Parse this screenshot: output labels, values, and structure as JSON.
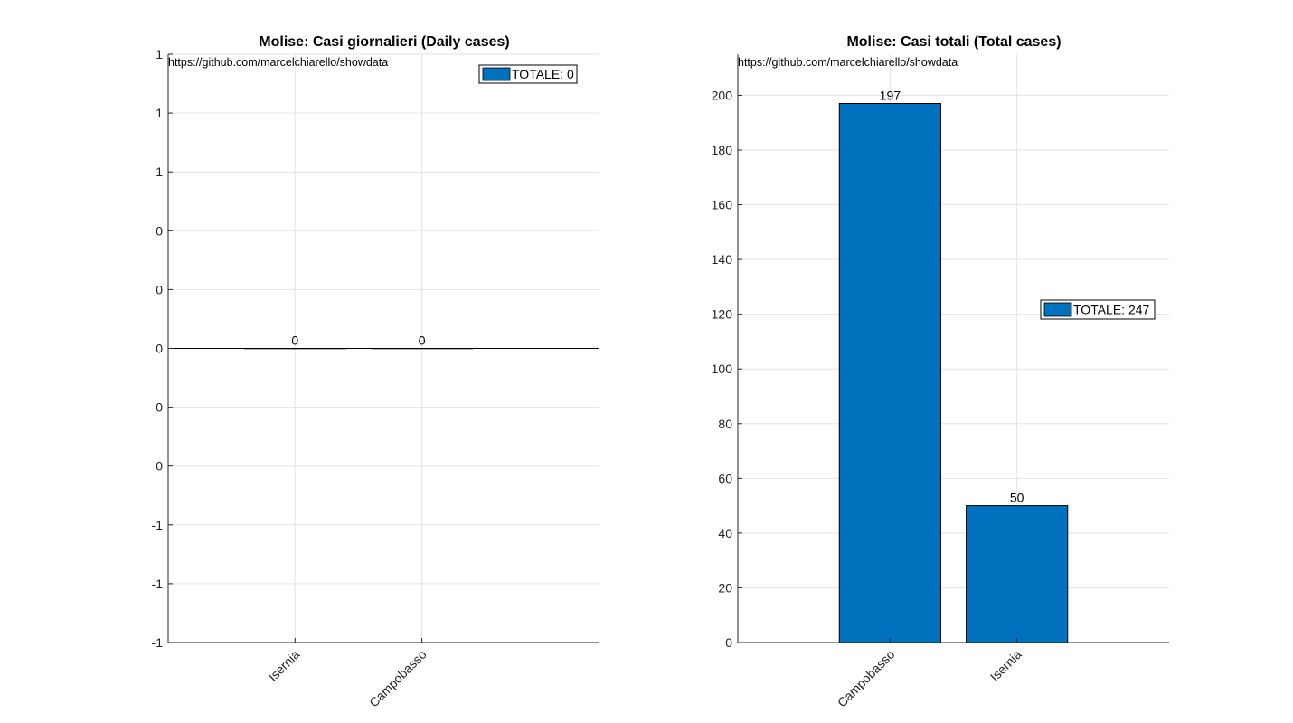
{
  "source_text": "https://github.com/marcelchiarello/showdata",
  "colors": {
    "bar": "#0072bd",
    "grid": "#e3e3e3",
    "axis": "#262626"
  },
  "chart_data": [
    {
      "type": "bar",
      "title": "Molise: Casi giornalieri (Daily cases)",
      "categories": [
        "Isernia",
        "Campobasso"
      ],
      "values": [
        0,
        0
      ],
      "value_labels": [
        "0",
        "0"
      ],
      "ylim": [
        -1,
        1
      ],
      "ytick_labels": [
        "-1",
        "-1",
        "-1",
        "0",
        "0",
        "0",
        "0",
        "0",
        "1",
        "1",
        "1"
      ],
      "grid": true,
      "legend": {
        "label": "TOTALE: 0",
        "position": "top-right"
      }
    },
    {
      "type": "bar",
      "title": "Molise: Casi totali (Total cases)",
      "categories": [
        "Campobasso",
        "Isernia"
      ],
      "values": [
        197,
        50
      ],
      "value_labels": [
        "197",
        "50"
      ],
      "ylim": [
        0,
        215
      ],
      "ytick_labels": [
        "0",
        "20",
        "40",
        "60",
        "80",
        "100",
        "120",
        "140",
        "160",
        "180",
        "200"
      ],
      "grid": true,
      "legend": {
        "label": "TOTALE: 247",
        "position": "middle-right"
      }
    }
  ]
}
